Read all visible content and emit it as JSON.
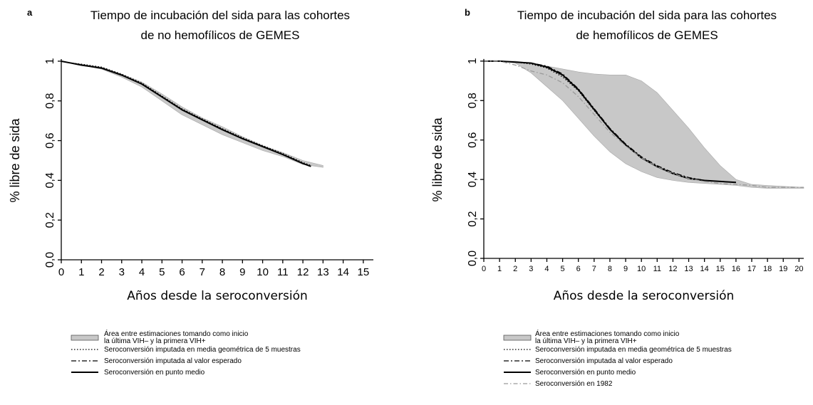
{
  "chart_data": [
    {
      "panel_label": "a",
      "type": "line",
      "title": "Tiempo de incubación del sida para las cohortes de no hemofílicos de GEMES",
      "title_lines": [
        "Tiempo de incubación del sida para las cohortes",
        "de no hemofílicos de GEMES"
      ],
      "xlabel": "Años desde la seroconversión",
      "ylabel": "% libre de sida",
      "xlim": [
        0,
        15.5
      ],
      "ylim": [
        0,
        1.05
      ],
      "x_ticks": [
        "0",
        "1",
        "2",
        "3",
        "4",
        "5",
        "6",
        "7",
        "8",
        "9",
        "10",
        "11",
        "12",
        "13",
        "14",
        "15"
      ],
      "y_ticks": [
        "0,0",
        "0,2",
        "0,4",
        "0,6",
        "0,8",
        "1"
      ],
      "grid": false,
      "band": {
        "name": "Área entre estimaciones tomando como inicio la última VIH– y la primera VIH+",
        "x": [
          0,
          1,
          2,
          3,
          4,
          5,
          6,
          7,
          8,
          9,
          10,
          11,
          12,
          13
        ],
        "lower": [
          1.0,
          0.98,
          0.96,
          0.92,
          0.87,
          0.8,
          0.73,
          0.68,
          0.63,
          0.59,
          0.55,
          0.52,
          0.48,
          0.465
        ],
        "upper": [
          1.0,
          0.985,
          0.97,
          0.935,
          0.895,
          0.835,
          0.77,
          0.715,
          0.67,
          0.62,
          0.575,
          0.54,
          0.5,
          0.475
        ]
      },
      "series": [
        {
          "name": "Seroconversión imputada en media geométrica de 5 muestras",
          "style": "dotted",
          "x": [
            0,
            0.5,
            1,
            2,
            3,
            4,
            5,
            6,
            7,
            8,
            9,
            10,
            11,
            12,
            12.4
          ],
          "y": [
            1.0,
            0.99,
            0.985,
            0.97,
            0.935,
            0.89,
            0.825,
            0.76,
            0.71,
            0.66,
            0.615,
            0.575,
            0.535,
            0.49,
            0.475
          ]
        },
        {
          "name": "Seroconversión imputada al valor esperado",
          "style": "dashdot",
          "x": [
            0,
            0.5,
            1,
            2,
            3,
            4,
            5,
            6,
            7,
            8,
            9,
            10,
            11,
            12,
            12.4
          ],
          "y": [
            1.0,
            0.99,
            0.98,
            0.965,
            0.93,
            0.885,
            0.82,
            0.755,
            0.705,
            0.655,
            0.61,
            0.57,
            0.53,
            0.485,
            0.47
          ]
        },
        {
          "name": "Seroconversión en punto medio",
          "style": "solid",
          "x": [
            0,
            0.5,
            1,
            2,
            3,
            4,
            5,
            6,
            7,
            8,
            9,
            10,
            11,
            12,
            12.4
          ],
          "y": [
            1.0,
            0.99,
            0.98,
            0.965,
            0.93,
            0.885,
            0.82,
            0.755,
            0.705,
            0.655,
            0.61,
            0.57,
            0.53,
            0.485,
            0.47
          ]
        }
      ],
      "legend": [
        {
          "type": "band",
          "lines": [
            "Área entre estimaciones tomando como inicio",
            "la última VIH– y la primera VIH+"
          ]
        },
        {
          "type": "dotted",
          "lines": [
            "Seroconversión imputada en media geométrica de 5 muestras"
          ]
        },
        {
          "type": "dashdot",
          "lines": [
            "Seroconversión imputada al valor esperado"
          ]
        },
        {
          "type": "solid",
          "lines": [
            "Seroconversión en punto medio"
          ]
        }
      ]
    },
    {
      "panel_label": "b",
      "type": "line",
      "title": "Tiempo de incubación del sida para las cohortes de hemofílicos de GEMES",
      "title_lines": [
        "Tiempo de incubación del sida para las cohortes",
        "de hemofílicos de GEMES"
      ],
      "xlabel": "Años desde la seroconversión",
      "ylabel": "% libre de sida",
      "xlim": [
        0,
        20.3
      ],
      "ylim": [
        0,
        1.05
      ],
      "x_ticks": [
        "0",
        "1",
        "2",
        "3",
        "4",
        "5",
        "6",
        "7",
        "8",
        "9",
        "10",
        "11",
        "12",
        "13",
        "14",
        "15",
        "16",
        "17",
        "18",
        "19",
        "20"
      ],
      "y_ticks": [
        "0,0",
        "0,2",
        "0,4",
        "0,6",
        "0,8",
        "1"
      ],
      "grid": false,
      "band": {
        "name": "Área entre estimaciones tomando como inicio la última VIH– y la primera VIH+",
        "x": [
          0,
          1,
          2,
          3,
          4,
          5,
          6,
          7,
          8,
          9,
          10,
          11,
          12,
          13,
          14,
          15,
          16,
          17,
          18,
          19,
          20.3
        ],
        "lower": [
          1.0,
          1.0,
          0.99,
          0.94,
          0.87,
          0.8,
          0.71,
          0.62,
          0.54,
          0.48,
          0.44,
          0.41,
          0.395,
          0.385,
          0.38,
          0.375,
          0.37,
          0.36,
          0.355,
          0.355,
          0.355
        ],
        "upper": [
          1.0,
          1.0,
          1.0,
          0.99,
          0.975,
          0.96,
          0.945,
          0.935,
          0.93,
          0.93,
          0.9,
          0.84,
          0.75,
          0.66,
          0.56,
          0.47,
          0.4,
          0.375,
          0.37,
          0.365,
          0.36
        ]
      },
      "series": [
        {
          "name": "Seroconversión imputada en media geométrica de 5 muestras",
          "style": "dotted",
          "x": [
            0,
            1,
            2,
            3,
            4,
            5,
            6,
            7,
            8,
            9,
            10,
            11,
            12,
            13,
            14,
            15,
            16
          ],
          "y": [
            1.0,
            1.0,
            0.995,
            0.985,
            0.965,
            0.92,
            0.85,
            0.75,
            0.655,
            0.575,
            0.51,
            0.465,
            0.43,
            0.405,
            0.395,
            0.39,
            0.385
          ]
        },
        {
          "name": "Seroconversión imputada al valor esperado",
          "style": "dashdot",
          "x": [
            0,
            1,
            2,
            3,
            4,
            5,
            6,
            7,
            8,
            9,
            10,
            11,
            12,
            13,
            14,
            15,
            16
          ],
          "y": [
            1.0,
            1.0,
            0.995,
            0.99,
            0.975,
            0.935,
            0.86,
            0.76,
            0.66,
            0.58,
            0.515,
            0.47,
            0.435,
            0.41,
            0.395,
            0.39,
            0.385
          ]
        },
        {
          "name": "Seroconversión en punto medio",
          "style": "solid",
          "x": [
            0,
            1,
            2,
            3,
            4,
            5,
            6,
            7,
            8,
            9,
            10,
            11,
            12,
            13,
            14,
            15,
            16
          ],
          "y": [
            1.0,
            1.0,
            0.995,
            0.99,
            0.97,
            0.93,
            0.855,
            0.755,
            0.655,
            0.575,
            0.51,
            0.465,
            0.43,
            0.405,
            0.395,
            0.39,
            0.385
          ]
        },
        {
          "name": "Seroconversión en 1982",
          "style": "light-dashdot",
          "x": [
            0,
            1,
            2,
            3,
            4,
            5,
            6,
            7,
            8,
            9,
            10,
            11,
            12,
            13,
            14,
            15,
            16,
            17,
            18,
            19,
            20.3
          ],
          "y": [
            1.0,
            1.0,
            0.98,
            0.95,
            0.93,
            0.89,
            0.82,
            0.73,
            0.64,
            0.57,
            0.51,
            0.465,
            0.43,
            0.405,
            0.39,
            0.38,
            0.375,
            0.37,
            0.36,
            0.36,
            0.36
          ]
        }
      ],
      "legend": [
        {
          "type": "band",
          "lines": [
            "Área entre estimaciones tomando como inicio",
            "la última VIH– y la primera VIH+"
          ]
        },
        {
          "type": "dotted",
          "lines": [
            "Seroconversión imputada en media geométrica de 5 muestras"
          ]
        },
        {
          "type": "dashdot",
          "lines": [
            "Seroconversión imputada al valor esperado"
          ]
        },
        {
          "type": "solid",
          "lines": [
            "Seroconversión en punto medio"
          ]
        },
        {
          "type": "light-dashdot",
          "lines": [
            "Seroconversión en 1982"
          ]
        }
      ]
    }
  ],
  "colors": {
    "band_fill": "#c8c8c8",
    "band_edge": "#a8a8a8",
    "line": "#000000",
    "line_light": "#9a9a9a"
  }
}
